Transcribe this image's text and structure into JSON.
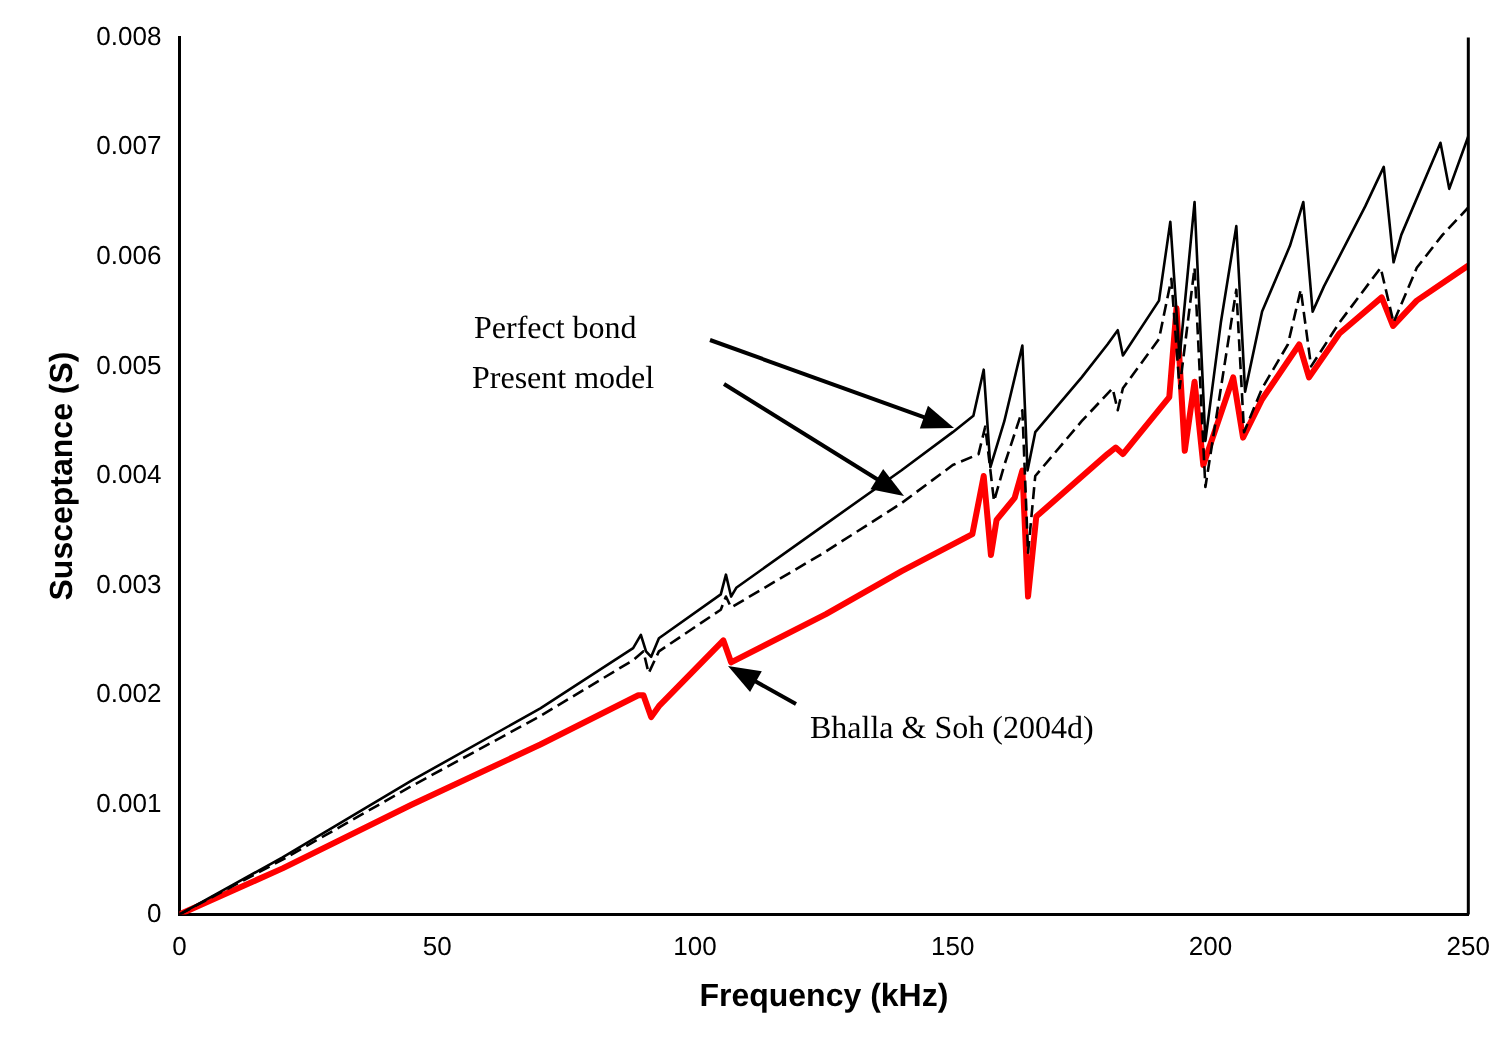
{
  "chart_data": {
    "type": "line",
    "xlabel": "Frequency (kHz)",
    "ylabel": "Susceptance (S)",
    "xlim": [
      0,
      250
    ],
    "xticks": [
      0,
      50,
      100,
      150,
      200,
      250
    ],
    "ylim": [
      0,
      0.008
    ],
    "yticks": [
      0,
      0.001,
      0.002,
      0.003,
      0.004,
      0.005,
      0.006,
      0.007,
      0.008
    ],
    "grid": false,
    "legend": false,
    "marker": "none",
    "series": [
      {
        "color": "#000000",
        "line_style": "solid",
        "x": [
          0,
          20,
          45,
          70,
          88,
          89.5,
          90.5,
          91.5,
          93,
          105,
          106,
          107,
          108,
          125,
          140,
          150,
          154,
          156,
          157.3,
          160,
          163.5,
          164.5,
          166,
          175,
          180,
          182,
          183,
          190,
          192.2,
          194,
          196.9,
          199,
          202,
          205,
          206.7,
          210,
          215.4,
          218,
          219.8,
          222,
          230,
          233.6,
          235.5,
          237,
          244.6,
          246.3,
          250
        ],
        "values": [
          0,
          0.00052,
          0.00122,
          0.00188,
          0.00243,
          0.00255,
          0.0024,
          0.00235,
          0.00252,
          0.00292,
          0.0031,
          0.0029,
          0.00298,
          0.00355,
          0.00405,
          0.0044,
          0.00455,
          0.00497,
          0.00408,
          0.0045,
          0.00519,
          0.00405,
          0.0044,
          0.0049,
          0.0052,
          0.00533,
          0.0051,
          0.0056,
          0.00632,
          0.00508,
          0.0065,
          0.00432,
          0.0054,
          0.00628,
          0.00477,
          0.0055,
          0.0061,
          0.0065,
          0.0055,
          0.00573,
          0.00646,
          0.00682,
          0.00595,
          0.0062,
          0.00704,
          0.00662,
          0.0071
        ]
      },
      {
        "color": "#000000",
        "line_style": "dashed",
        "x": [
          0,
          20,
          45,
          70,
          88,
          90,
          91,
          93,
          105,
          106,
          107,
          125,
          140,
          150,
          155,
          156.3,
          158,
          160,
          163.5,
          164.6,
          166,
          175,
          181,
          182,
          183,
          190,
          192.4,
          194,
          196.9,
          199,
          202,
          205,
          206.5,
          210,
          215,
          217.5,
          219.5,
          225,
          233,
          235.5,
          240,
          245,
          250
        ],
        "values": [
          0,
          0.0005,
          0.00117,
          0.00181,
          0.00232,
          0.0024,
          0.0022,
          0.0024,
          0.00278,
          0.0029,
          0.0028,
          0.0033,
          0.00375,
          0.0041,
          0.0042,
          0.00445,
          0.00377,
          0.0041,
          0.0046,
          0.0033,
          0.004,
          0.0045,
          0.0048,
          0.0046,
          0.0048,
          0.00525,
          0.0058,
          0.0048,
          0.0059,
          0.0039,
          0.0048,
          0.0057,
          0.0044,
          0.0048,
          0.0052,
          0.0057,
          0.005,
          0.0054,
          0.0059,
          0.0054,
          0.0059,
          0.0062,
          0.00645
        ]
      },
      {
        "color": "#ff0000",
        "line_style": "solid",
        "x": [
          0,
          20,
          45,
          70,
          89,
          90,
          91.5,
          93,
          105.5,
          107,
          125.4,
          140,
          153.8,
          156,
          157.4,
          158.5,
          162,
          163.5,
          164.6,
          166.2,
          180,
          181.6,
          183,
          192,
          193.4,
          195,
          196.9,
          198.6,
          204.4,
          206.3,
          210,
          217.2,
          219.1,
          225,
          233.2,
          235.4,
          240,
          250
        ],
        "values": [
          0,
          0.00042,
          0.001,
          0.00155,
          0.002,
          0.002,
          0.0018,
          0.0019,
          0.0025,
          0.0023,
          0.00274,
          0.00313,
          0.00347,
          0.004,
          0.00328,
          0.0036,
          0.0038,
          0.00405,
          0.0029,
          0.00363,
          0.0042,
          0.00426,
          0.0042,
          0.00472,
          0.00553,
          0.00423,
          0.00486,
          0.0041,
          0.0049,
          0.00435,
          0.0047,
          0.0052,
          0.0049,
          0.0053,
          0.00563,
          0.00537,
          0.0056,
          0.00592
        ]
      }
    ],
    "annotations": [
      "Perfect bond",
      "Present model",
      "Bhalla & Soh (2004d)"
    ]
  }
}
